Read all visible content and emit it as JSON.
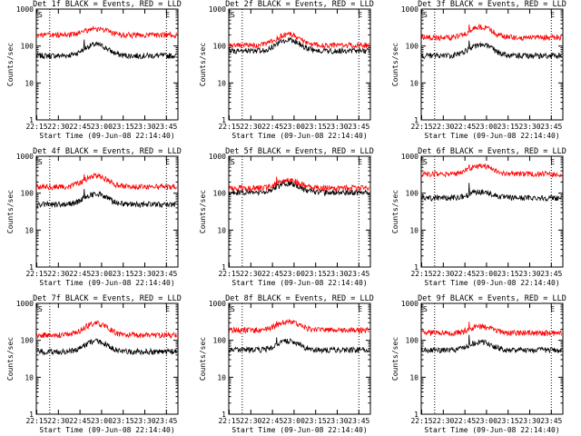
{
  "colors": {
    "events": "#000000",
    "lld": "#ff0000",
    "axis": "#000000"
  },
  "shared": {
    "xlabel": "Start Time (09-Jun-08 22:14:40)",
    "ylabel": "Counts/sec",
    "x_tick_labels": [
      "22:15",
      "22:30",
      "22:45",
      "23:00",
      "23:15",
      "23:30",
      "23:45"
    ],
    "y_tick_labels": [
      "1",
      "10",
      "100",
      "1000"
    ],
    "marker_s": "S",
    "marker_e": "E",
    "ylim": [
      1,
      1000
    ],
    "y_scale": "log",
    "xlim": [
      "22:14:40",
      "23:53:00"
    ],
    "dotted_lines_x": [
      "22:24",
      "23:45"
    ]
  },
  "chart_data": [
    {
      "type": "line",
      "title": "Det 1f BLACK = Events, RED = LLD",
      "series": [
        {
          "name": "Events",
          "baseline": 55,
          "peak": 110,
          "spike": 150
        },
        {
          "name": "LLD",
          "baseline": 200,
          "peak": 300,
          "spike": 260
        }
      ]
    },
    {
      "type": "line",
      "title": "Det 2f BLACK = Events, RED = LLD",
      "series": [
        {
          "name": "Events",
          "baseline": 75,
          "peak": 150,
          "spike": 0
        },
        {
          "name": "LLD",
          "baseline": 105,
          "peak": 210,
          "spike": 0
        }
      ]
    },
    {
      "type": "line",
      "title": "Det 3f BLACK = Events, RED = LLD",
      "series": [
        {
          "name": "Events",
          "baseline": 55,
          "peak": 110,
          "spike": 140
        },
        {
          "name": "LLD",
          "baseline": 170,
          "peak": 330,
          "spike": 380
        }
      ]
    },
    {
      "type": "line",
      "title": "Det 4f BLACK = Events, RED = LLD",
      "series": [
        {
          "name": "Events",
          "baseline": 50,
          "peak": 95,
          "spike": 130
        },
        {
          "name": "LLD",
          "baseline": 150,
          "peak": 300,
          "spike": 330
        }
      ]
    },
    {
      "type": "line",
      "title": "Det 5f BLACK = Events, RED = LLD",
      "series": [
        {
          "name": "Events",
          "baseline": 105,
          "peak": 185,
          "spike": 200
        },
        {
          "name": "LLD",
          "baseline": 140,
          "peak": 230,
          "spike": 280
        }
      ]
    },
    {
      "type": "line",
      "title": "Det 6f BLACK = Events, RED = LLD",
      "series": [
        {
          "name": "Events",
          "baseline": 75,
          "peak": 110,
          "spike": 190
        },
        {
          "name": "LLD",
          "baseline": 330,
          "peak": 560,
          "spike": 600
        }
      ]
    },
    {
      "type": "line",
      "title": "Det 7f BLACK = Events, RED = LLD",
      "series": [
        {
          "name": "Events",
          "baseline": 50,
          "peak": 95,
          "spike": 0
        },
        {
          "name": "LLD",
          "baseline": 140,
          "peak": 290,
          "spike": 0
        }
      ]
    },
    {
      "type": "line",
      "title": "Det 8f BLACK = Events, RED = LLD",
      "series": [
        {
          "name": "Events",
          "baseline": 55,
          "peak": 95,
          "spike": 120
        },
        {
          "name": "LLD",
          "baseline": 190,
          "peak": 310,
          "spike": 330
        }
      ]
    },
    {
      "type": "line",
      "title": "Det 9f BLACK = Events, RED = LLD",
      "series": [
        {
          "name": "Events",
          "baseline": 55,
          "peak": 90,
          "spike": 140
        },
        {
          "name": "LLD",
          "baseline": 160,
          "peak": 240,
          "spike": 320
        }
      ]
    }
  ]
}
